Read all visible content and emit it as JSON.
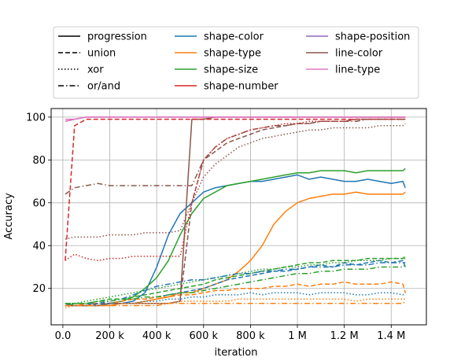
{
  "chart_data": {
    "type": "line",
    "title": "",
    "xlabel": "iteration",
    "ylabel": "Accuracy",
    "xlim": [
      -50000,
      1550000
    ],
    "ylim": [
      3,
      104
    ],
    "x_ticks": [
      {
        "value": 0,
        "label": "0.0"
      },
      {
        "value": 200000,
        "label": "200 k"
      },
      {
        "value": 400000,
        "label": "400 k"
      },
      {
        "value": 600000,
        "label": "600 k"
      },
      {
        "value": 800000,
        "label": "800 k"
      },
      {
        "value": 1000000,
        "label": "1 M"
      },
      {
        "value": 1200000,
        "label": "1.2 M"
      },
      {
        "value": 1400000,
        "label": "1.4 M"
      }
    ],
    "y_ticks": [
      {
        "value": 20,
        "label": "20"
      },
      {
        "value": 40,
        "label": "40"
      },
      {
        "value": 60,
        "label": "60"
      },
      {
        "value": 80,
        "label": "80"
      },
      {
        "value": 100,
        "label": "100"
      }
    ],
    "grid": true,
    "legend_placement": "top, outside plot",
    "line_styles": [
      {
        "name": "progression",
        "dash": "solid"
      },
      {
        "name": "union",
        "dash": "dashed"
      },
      {
        "name": "xor",
        "dash": "dotted"
      },
      {
        "name": "or/and",
        "dash": "dashdot"
      }
    ],
    "attributes": [
      {
        "name": "shape-color",
        "color": "#1f77b4"
      },
      {
        "name": "shape-type",
        "color": "#ff7f0e"
      },
      {
        "name": "shape-size",
        "color": "#2ca02c"
      },
      {
        "name": "shape-number",
        "color": "#d62728"
      },
      {
        "name": "shape-position",
        "color": "#9467bd"
      },
      {
        "name": "line-color",
        "color": "#8c564b"
      },
      {
        "name": "line-type",
        "color": "#e377c2"
      }
    ],
    "x": [
      10000,
      50000,
      100000,
      150000,
      200000,
      250000,
      300000,
      350000,
      400000,
      450000,
      500000,
      550000,
      600000,
      650000,
      700000,
      750000,
      800000,
      850000,
      900000,
      950000,
      1000000,
      1050000,
      1100000,
      1150000,
      1200000,
      1250000,
      1300000,
      1350000,
      1400000,
      1450000,
      1460000
    ],
    "series": [
      {
        "rule": "progression",
        "attribute": "shape-color",
        "values": [
          13,
          12,
          12,
          12,
          13,
          13,
          14,
          18,
          30,
          45,
          55,
          60,
          65,
          67,
          68,
          69,
          70,
          70,
          71,
          72,
          73,
          71,
          72,
          71,
          70,
          70,
          71,
          70,
          69,
          70,
          67
        ]
      },
      {
        "rule": "progression",
        "attribute": "shape-type",
        "values": [
          13,
          12,
          12,
          12,
          12,
          13,
          13,
          14,
          15,
          16,
          18,
          18,
          20,
          22,
          24,
          28,
          33,
          40,
          50,
          56,
          60,
          62,
          63,
          64,
          64,
          65,
          64,
          64,
          64,
          64,
          65
        ]
      },
      {
        "rule": "progression",
        "attribute": "shape-size",
        "values": [
          13,
          12,
          12,
          12,
          13,
          14,
          16,
          20,
          25,
          33,
          45,
          55,
          62,
          65,
          68,
          69,
          70,
          71,
          72,
          73,
          74,
          74,
          75,
          75,
          75,
          74,
          75,
          75,
          75,
          75,
          76
        ]
      },
      {
        "rule": "progression",
        "attribute": "shape-position",
        "values": [
          98,
          99,
          100,
          100,
          100,
          100,
          100,
          100,
          100,
          100,
          100,
          100,
          100,
          100,
          100,
          100,
          100,
          100,
          100,
          100,
          100,
          100,
          100,
          100,
          100,
          100,
          100,
          100,
          100,
          100,
          100
        ]
      },
      {
        "rule": "progression",
        "attribute": "line-color",
        "values": [
          12,
          12,
          12,
          12,
          13,
          13,
          13,
          13,
          13,
          13,
          14,
          99,
          99,
          100,
          100,
          100,
          100,
          100,
          100,
          100,
          100,
          100,
          100,
          100,
          100,
          100,
          100,
          100,
          100,
          100,
          100
        ]
      },
      {
        "rule": "progression",
        "attribute": "line-type",
        "values": [
          99,
          99,
          100,
          100,
          100,
          100,
          100,
          100,
          100,
          100,
          100,
          100,
          100,
          100,
          100,
          100,
          100,
          100,
          100,
          100,
          100,
          100,
          100,
          100,
          100,
          100,
          100,
          100,
          100,
          100,
          100
        ]
      },
      {
        "rule": "union",
        "attribute": "shape-color",
        "values": [
          12,
          13,
          13,
          12,
          13,
          14,
          15,
          15,
          16,
          17,
          18,
          19,
          20,
          22,
          24,
          25,
          26,
          27,
          28,
          28,
          29,
          30,
          31,
          30,
          32,
          31,
          32,
          33,
          32,
          33,
          30
        ]
      },
      {
        "rule": "union",
        "attribute": "shape-type",
        "values": [
          12,
          12,
          13,
          13,
          13,
          14,
          15,
          15,
          16,
          16,
          17,
          17,
          18,
          19,
          19,
          20,
          20,
          20,
          21,
          21,
          22,
          21,
          22,
          22,
          23,
          22,
          22,
          22,
          23,
          22,
          18
        ]
      },
      {
        "rule": "union",
        "attribute": "shape-size",
        "values": [
          13,
          13,
          13,
          14,
          15,
          15,
          16,
          17,
          18,
          19,
          20,
          21,
          22,
          24,
          25,
          26,
          27,
          28,
          29,
          30,
          31,
          32,
          32,
          33,
          33,
          33,
          34,
          34,
          34,
          34,
          35
        ]
      },
      {
        "rule": "union",
        "attribute": "shape-number",
        "values": [
          33,
          96,
          99,
          99,
          99,
          99,
          99,
          99,
          99,
          99,
          99,
          99,
          99,
          99,
          99,
          99,
          99,
          99,
          99,
          99,
          99,
          99,
          99,
          99,
          99,
          99,
          99,
          99,
          99,
          99,
          99
        ]
      },
      {
        "rule": "union",
        "attribute": "line-color",
        "values": [
          12,
          12,
          12,
          13,
          13,
          13,
          13,
          13,
          13,
          13,
          14,
          60,
          80,
          84,
          88,
          90,
          92,
          94,
          95,
          96,
          97,
          97,
          98,
          98,
          98,
          99,
          99,
          99,
          99,
          99,
          99
        ]
      },
      {
        "rule": "xor",
        "attribute": "shape-color",
        "values": [
          12,
          12,
          12,
          12,
          13,
          13,
          13,
          14,
          14,
          15,
          15,
          16,
          16,
          17,
          17,
          17,
          18,
          17,
          18,
          18,
          18,
          17,
          18,
          18,
          18,
          17,
          17,
          18,
          18,
          17,
          18
        ]
      },
      {
        "rule": "xor",
        "attribute": "shape-type",
        "values": [
          11,
          12,
          12,
          12,
          12,
          13,
          13,
          13,
          13,
          13,
          14,
          14,
          14,
          14,
          14,
          15,
          15,
          15,
          15,
          15,
          15,
          15,
          15,
          15,
          15,
          14,
          15,
          15,
          15,
          15,
          15
        ]
      },
      {
        "rule": "xor",
        "attribute": "shape-size",
        "values": [
          13,
          13,
          14,
          15,
          16,
          17,
          18,
          19,
          20,
          21,
          22,
          23,
          24,
          25,
          26,
          27,
          28,
          29,
          29,
          30,
          30,
          31,
          31,
          32,
          32,
          33,
          33,
          33,
          34,
          34,
          34
        ]
      },
      {
        "rule": "xor",
        "attribute": "line-color",
        "values": [
          43,
          44,
          44,
          44,
          45,
          45,
          45,
          46,
          46,
          46,
          47,
          60,
          72,
          78,
          82,
          86,
          88,
          90,
          91,
          92,
          93,
          94,
          94,
          95,
          95,
          95,
          95,
          96,
          96,
          96,
          97
        ]
      },
      {
        "rule": "or/and",
        "attribute": "shape-color",
        "values": [
          13,
          13,
          13,
          13,
          14,
          15,
          17,
          19,
          21,
          22,
          23,
          24,
          24,
          25,
          26,
          27,
          27,
          28,
          28,
          29,
          29,
          30,
          30,
          30,
          31,
          31,
          31,
          32,
          32,
          32,
          32
        ]
      },
      {
        "rule": "or/and",
        "attribute": "shape-type",
        "values": [
          12,
          12,
          12,
          12,
          12,
          12,
          12,
          12,
          12,
          13,
          13,
          13,
          13,
          13,
          13,
          13,
          13,
          13,
          13,
          13,
          13,
          13,
          13,
          13,
          13,
          13,
          13,
          13,
          13,
          13,
          14
        ]
      },
      {
        "rule": "or/and",
        "attribute": "shape-size",
        "values": [
          13,
          13,
          13,
          14,
          14,
          15,
          15,
          16,
          16,
          17,
          18,
          18,
          19,
          20,
          21,
          22,
          23,
          24,
          25,
          26,
          27,
          27,
          28,
          28,
          29,
          29,
          29,
          30,
          30,
          30,
          31
        ]
      },
      {
        "rule": "or/and",
        "attribute": "line-color",
        "values": [
          64,
          67,
          68,
          69,
          68,
          68,
          68,
          68,
          68,
          68,
          68,
          68,
          80,
          86,
          90,
          92,
          94,
          95,
          96,
          96,
          97,
          97,
          98,
          98,
          98,
          98,
          99,
          99,
          99,
          99,
          99
        ]
      },
      {
        "rule": "or/and",
        "attribute": "line-type",
        "values": [
          98,
          99,
          100,
          100,
          100,
          100,
          100,
          100,
          100,
          100,
          100,
          100,
          100,
          100,
          100,
          100,
          100,
          100,
          100,
          100,
          100,
          100,
          100,
          100,
          100,
          100,
          100,
          100,
          100,
          100,
          100
        ]
      },
      {
        "rule": "xor",
        "attribute": "shape-number",
        "values": [
          33,
          36,
          34,
          33,
          34,
          34,
          35,
          35,
          35,
          35,
          35,
          60,
          80,
          86,
          90,
          92,
          94,
          95,
          96,
          97,
          97,
          98,
          98,
          98,
          98,
          99,
          99,
          99,
          99,
          99,
          99
        ]
      }
    ]
  }
}
